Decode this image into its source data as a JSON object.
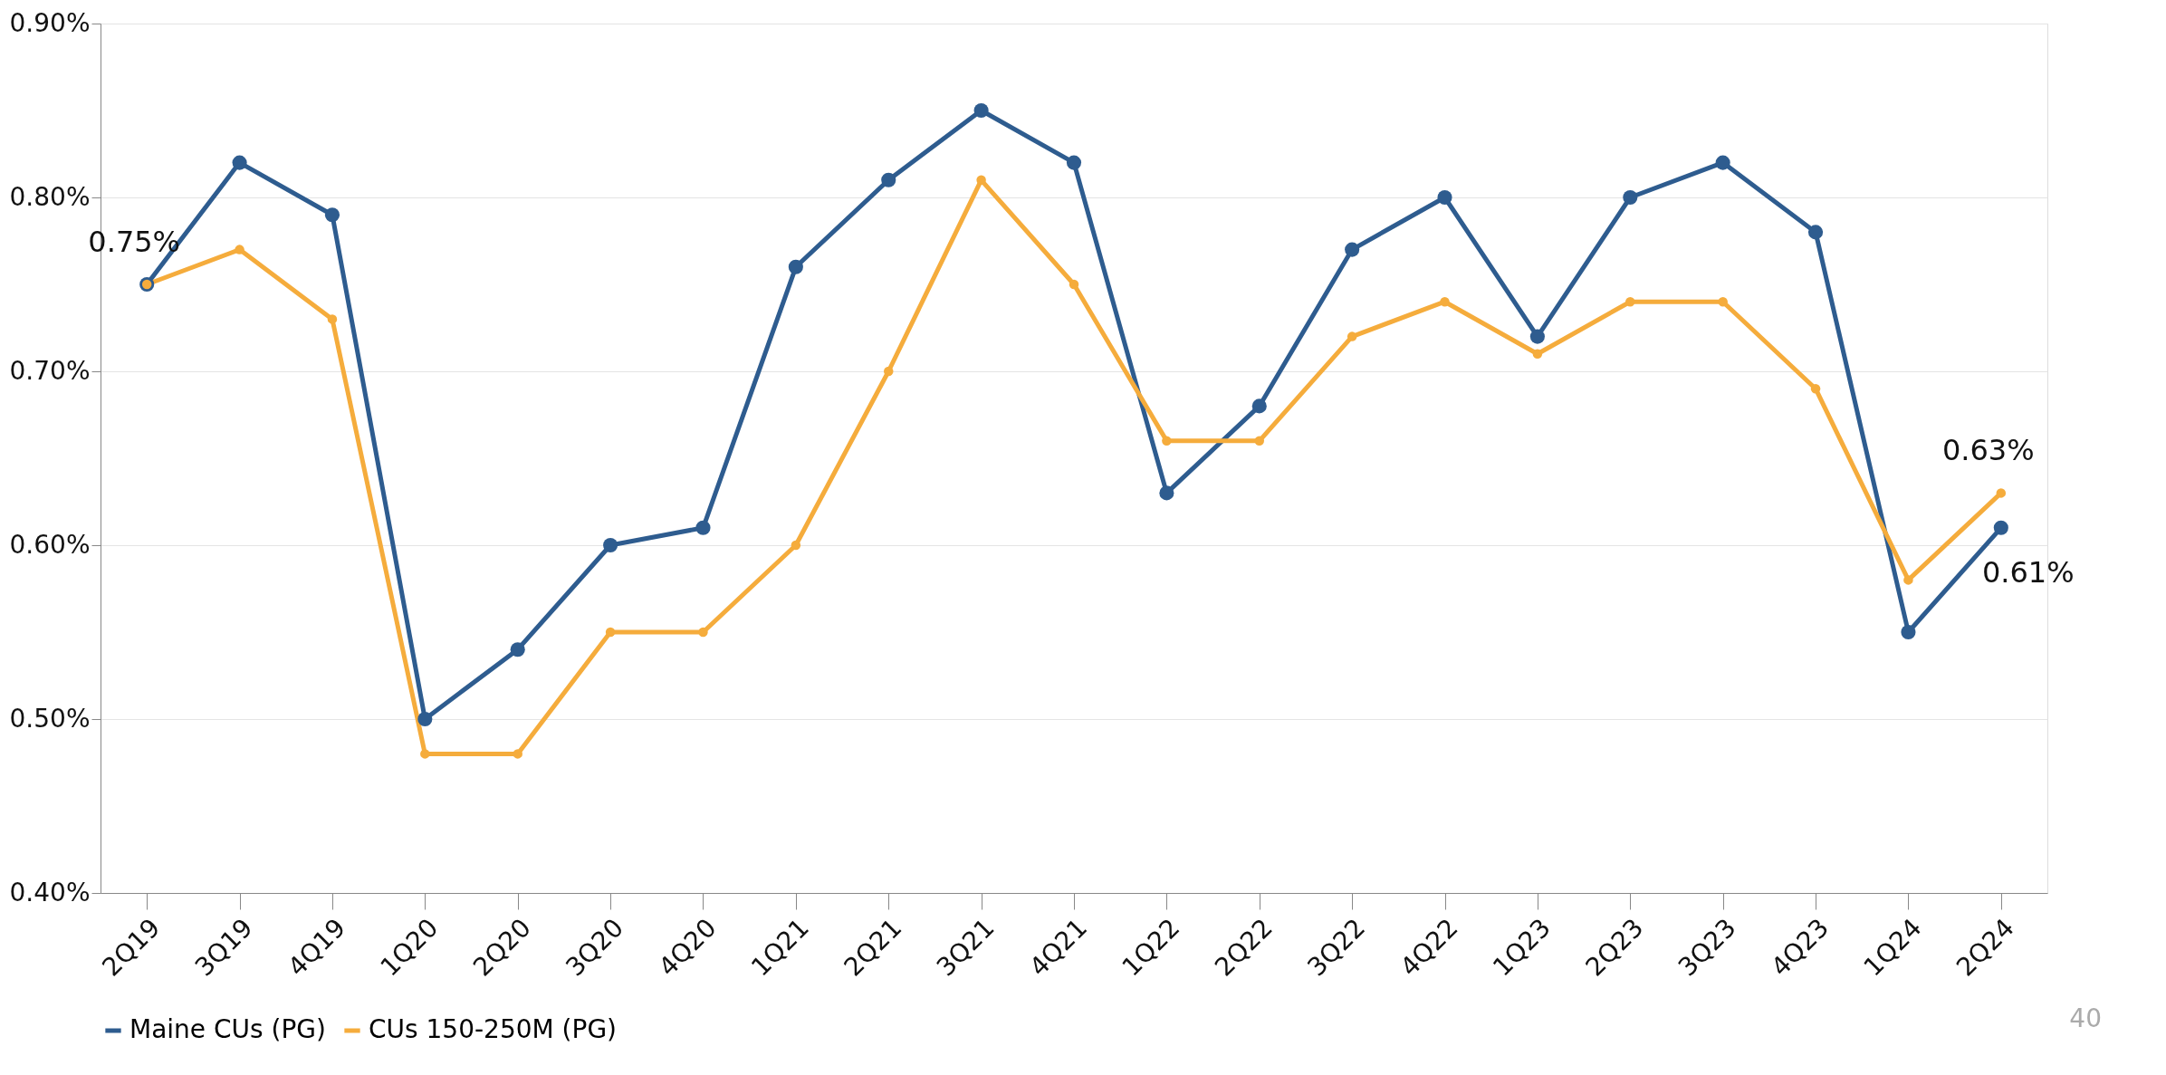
{
  "chart_data": {
    "type": "line",
    "categories": [
      "2Q19",
      "3Q19",
      "4Q19",
      "1Q20",
      "2Q20",
      "3Q20",
      "4Q20",
      "1Q21",
      "2Q21",
      "3Q21",
      "4Q21",
      "1Q22",
      "2Q22",
      "3Q22",
      "4Q22",
      "1Q23",
      "2Q23",
      "3Q23",
      "4Q23",
      "1Q24",
      "2Q24"
    ],
    "series": [
      {
        "name": "Maine CUs (PG)",
        "color": "#2e5c8f",
        "values": [
          0.75,
          0.82,
          0.79,
          0.5,
          0.54,
          0.6,
          0.61,
          0.76,
          0.81,
          0.85,
          0.82,
          0.63,
          0.68,
          0.77,
          0.8,
          0.72,
          0.8,
          0.82,
          0.78,
          0.55,
          0.61
        ],
        "value_labels": [
          null,
          null,
          null,
          null,
          null,
          null,
          null,
          null,
          null,
          null,
          null,
          null,
          null,
          null,
          null,
          null,
          null,
          null,
          null,
          null,
          "0.61%"
        ]
      },
      {
        "name": "CUs 150-250M (PG)",
        "color": "#f5ac3c",
        "values": [
          0.75,
          0.77,
          0.73,
          0.48,
          0.48,
          0.55,
          0.55,
          0.6,
          0.7,
          0.81,
          0.75,
          0.66,
          0.66,
          0.72,
          0.74,
          0.71,
          0.74,
          0.74,
          0.69,
          0.58,
          0.63
        ],
        "value_labels": [
          "0.75%",
          null,
          null,
          null,
          null,
          null,
          null,
          null,
          null,
          null,
          null,
          null,
          null,
          null,
          null,
          null,
          null,
          null,
          null,
          null,
          "0.63%"
        ]
      }
    ],
    "ylim": [
      0.4,
      0.9
    ],
    "yticks": [
      {
        "value": 0.4,
        "label": "0.40%"
      },
      {
        "value": 0.5,
        "label": "0.50%"
      },
      {
        "value": 0.6,
        "label": "0.60%"
      },
      {
        "value": 0.7,
        "label": "0.70%"
      },
      {
        "value": 0.8,
        "label": "0.80%"
      },
      {
        "value": 0.9,
        "label": "0.90%"
      }
    ],
    "grid": "y",
    "legend": "bottom",
    "marker": "circle",
    "line_style": "solid",
    "annotations": [
      "40"
    ]
  }
}
